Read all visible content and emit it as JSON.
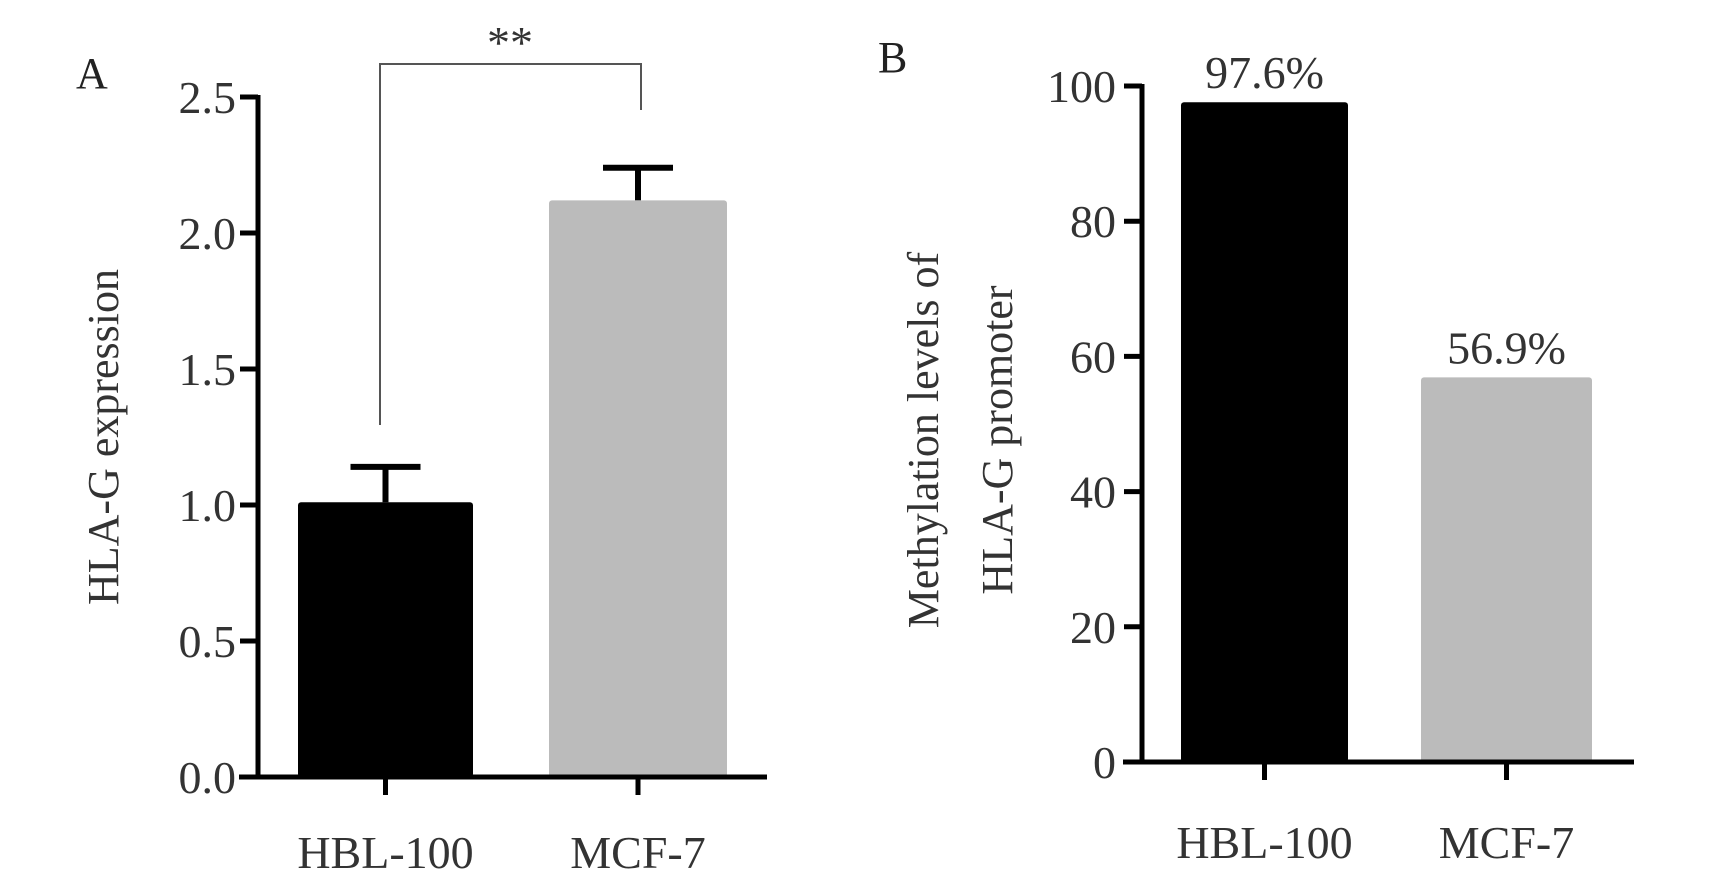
{
  "chart_data": [
    {
      "type": "bar",
      "panel_label": "A",
      "categories": [
        "HBL-100",
        "MCF-7"
      ],
      "values": [
        1.01,
        2.12
      ],
      "error_upper": [
        1.14,
        2.24
      ],
      "colors": [
        "#000000",
        "#bbbbbb"
      ],
      "ylabel": "HLA-G expression",
      "ylim": [
        0,
        2.5
      ],
      "yticks": [
        "0.0",
        "0.5",
        "1.0",
        "1.5",
        "2.0",
        "2.5"
      ],
      "grid": false,
      "significance": "**"
    },
    {
      "type": "bar",
      "panel_label": "B",
      "categories": [
        "HBL-100",
        "MCF-7"
      ],
      "values": [
        97.6,
        56.9
      ],
      "data_labels": [
        "97.6%",
        "56.9%"
      ],
      "colors": [
        "#000000",
        "#bbbbbb"
      ],
      "ylabel_lines": [
        "Methylation levels of",
        "HLA-G promoter"
      ],
      "ylim": [
        0,
        100
      ],
      "yticks": [
        "0",
        "20",
        "40",
        "60",
        "80",
        "100"
      ],
      "grid": false
    }
  ]
}
